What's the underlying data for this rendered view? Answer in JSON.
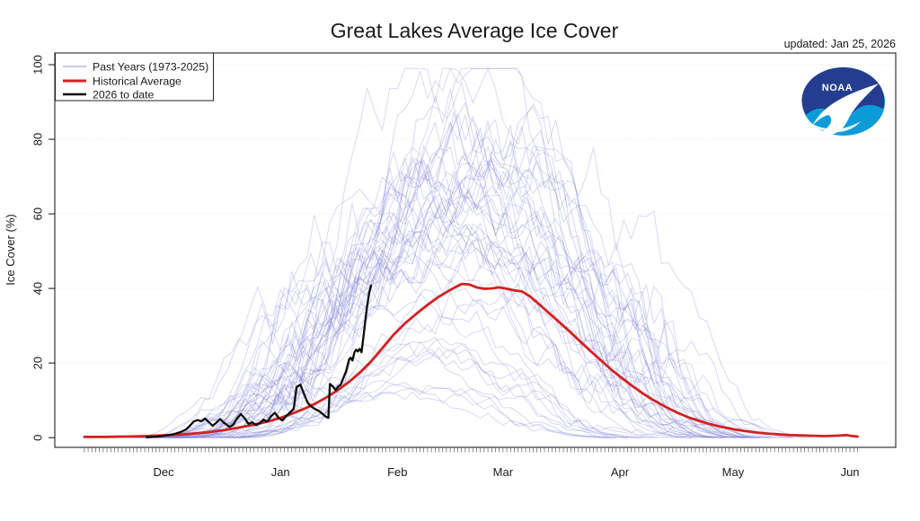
{
  "title": "Great Lakes Average Ice Cover",
  "updated": "updated: Jan 25, 2026",
  "logo": {
    "text": "NOAA"
  },
  "colors": {
    "past": "#7d82d8",
    "past_opacity": 0.3,
    "past_swatch": "#c6c9ea",
    "average": "#d42020",
    "current": "#0a0a0a",
    "grid": "#ececec",
    "axis": "#222222",
    "noaa_navy": "#243d8f",
    "noaa_cyan": "#0b9cd8"
  },
  "legend": {
    "items": [
      {
        "label": "Past Years (1973-2025)",
        "color": "#c6c9ea",
        "width": 2
      },
      {
        "label": "Historical Average",
        "color": "#d42020",
        "width": 3
      },
      {
        "label": "2026 to date",
        "color": "#0a0a0a",
        "width": 2.5
      }
    ]
  },
  "axes": {
    "y_label": "Ice Cover (%)",
    "y_ticks": [
      0,
      20,
      40,
      60,
      80,
      100
    ],
    "months": [
      [
        "Dec",
        30
      ],
      [
        "Jan",
        61
      ],
      [
        "Feb",
        92
      ],
      [
        "Mar",
        120
      ],
      [
        "Apr",
        151
      ],
      [
        "May",
        181
      ],
      [
        "Jun",
        212
      ]
    ],
    "minor_tick_unit": "daily"
  },
  "chart_data": {
    "type": "line",
    "title": "Great Lakes Average Ice Cover",
    "xlabel": "",
    "ylabel": "Ice Cover (%)",
    "ylim": [
      0,
      100
    ],
    "x_unit": "days since Nov 1 (season Nov - mid Jun), month labels at month start",
    "grid": "faint dotted horizontal lines at 20,40,60,80,100",
    "legend_position": "top-left inside plot box",
    "average": {
      "name": "Historical Average",
      "color": "#d42020",
      "points": [
        [
          9,
          0.2
        ],
        [
          14,
          0.2
        ],
        [
          20,
          0.3
        ],
        [
          25,
          0.4
        ],
        [
          30,
          0.6
        ],
        [
          34,
          0.8
        ],
        [
          38,
          1.1
        ],
        [
          42,
          1.5
        ],
        [
          46,
          2
        ],
        [
          50,
          2.7
        ],
        [
          54,
          3.5
        ],
        [
          58,
          4.4
        ],
        [
          61,
          5.3
        ],
        [
          64,
          6.4
        ],
        [
          67,
          7.6
        ],
        [
          70,
          9
        ],
        [
          73,
          10.7
        ],
        [
          76,
          12.6
        ],
        [
          79,
          14.8
        ],
        [
          82,
          17.4
        ],
        [
          85,
          20.4
        ],
        [
          88,
          24
        ],
        [
          91,
          27.6
        ],
        [
          94,
          30.6
        ],
        [
          97,
          33.2
        ],
        [
          100,
          35.6
        ],
        [
          103,
          37.8
        ],
        [
          106,
          39.6
        ],
        [
          109,
          41.2
        ],
        [
          111,
          41.1
        ],
        [
          113,
          40.3
        ],
        [
          115,
          39.9
        ],
        [
          117,
          40
        ],
        [
          119,
          40.3
        ],
        [
          121,
          39.9
        ],
        [
          123,
          39.5
        ],
        [
          125,
          39.2
        ],
        [
          127,
          38
        ],
        [
          129,
          36.3
        ],
        [
          131,
          34.5
        ],
        [
          133,
          32.7
        ],
        [
          135,
          30.9
        ],
        [
          137,
          29.1
        ],
        [
          139,
          27.2
        ],
        [
          141,
          25.3
        ],
        [
          143,
          23.4
        ],
        [
          145,
          21.6
        ],
        [
          147,
          19.8
        ],
        [
          149,
          18
        ],
        [
          151,
          16.4
        ],
        [
          154,
          14.1
        ],
        [
          157,
          11.9
        ],
        [
          160,
          10
        ],
        [
          163,
          8.3
        ],
        [
          166,
          6.8
        ],
        [
          169,
          5.5
        ],
        [
          172,
          4.5
        ],
        [
          175,
          3.6
        ],
        [
          178,
          2.9
        ],
        [
          181,
          2.3
        ],
        [
          184,
          1.8
        ],
        [
          187,
          1.4
        ],
        [
          190,
          1.1
        ],
        [
          193,
          0.9
        ],
        [
          196,
          0.7
        ],
        [
          199,
          0.6
        ],
        [
          202,
          0.5
        ],
        [
          205,
          0.4
        ],
        [
          208,
          0.5
        ],
        [
          210,
          0.6
        ],
        [
          211,
          0.7
        ],
        [
          212,
          0.5
        ],
        [
          214,
          0.3
        ]
      ]
    },
    "current": {
      "name": "2026 to date",
      "color": "#0a0a0a",
      "end_label": "ends Jan 25 at ~41%",
      "points": [
        [
          25.5,
          0.1
        ],
        [
          27,
          0.2
        ],
        [
          28.5,
          0.3
        ],
        [
          30,
          0.5
        ],
        [
          31.5,
          0.7
        ],
        [
          33,
          1
        ],
        [
          34.5,
          1.5
        ],
        [
          36,
          2.2
        ],
        [
          37,
          3.2
        ],
        [
          38,
          4.3
        ],
        [
          39,
          4.7
        ],
        [
          40,
          4.4
        ],
        [
          41,
          5.1
        ],
        [
          42,
          4.2
        ],
        [
          43,
          3.2
        ],
        [
          44,
          4
        ],
        [
          45,
          5
        ],
        [
          46,
          4
        ],
        [
          47.5,
          2.9
        ],
        [
          48.5,
          3.5
        ],
        [
          49.5,
          5.2
        ],
        [
          50.5,
          6.3
        ],
        [
          51.5,
          5.2
        ],
        [
          52.5,
          3.7
        ],
        [
          53.5,
          4.1
        ],
        [
          54.5,
          3.4
        ],
        [
          55.5,
          3.9
        ],
        [
          56.5,
          4.8
        ],
        [
          57.5,
          4.3
        ],
        [
          58.5,
          5.7
        ],
        [
          59.5,
          6.7
        ],
        [
          60.5,
          5.3
        ],
        [
          61.5,
          4.6
        ],
        [
          62.5,
          5.8
        ],
        [
          63.5,
          6.7
        ],
        [
          64.5,
          7.7
        ],
        [
          65.3,
          13.6
        ],
        [
          66.3,
          14.2
        ],
        [
          67.2,
          11.8
        ],
        [
          68.2,
          9.4
        ],
        [
          69.1,
          8.4
        ],
        [
          70.1,
          7.7
        ],
        [
          71.1,
          7.2
        ],
        [
          72,
          6.5
        ],
        [
          73,
          5.6
        ],
        [
          73.7,
          5.3
        ],
        [
          74.1,
          14.4
        ],
        [
          74.9,
          13.7
        ],
        [
          75.6,
          12.8
        ],
        [
          76.3,
          13.7
        ],
        [
          77,
          14.2
        ],
        [
          77.7,
          16.1
        ],
        [
          78.4,
          17.8
        ],
        [
          79.2,
          21
        ],
        [
          79.6,
          21.4
        ],
        [
          80.1,
          20.7
        ],
        [
          80.6,
          22.9
        ],
        [
          81.1,
          23.6
        ],
        [
          81.5,
          23.1
        ],
        [
          82,
          23.8
        ],
        [
          82.5,
          22.9
        ],
        [
          83,
          27
        ],
        [
          83.5,
          31.3
        ],
        [
          84,
          35.4
        ],
        [
          84.5,
          38.6
        ],
        [
          85,
          40.8
        ]
      ]
    },
    "past_years": {
      "name": "Past Years (1973-2025)",
      "color": "#7d82d8",
      "note": "53 faint overlapping seasonal curves; individual values not readable, approximated by [year, peak_pct, peak_day, start_day, end_day, seed]",
      "years": [
        [
          1973,
          64,
          108,
          30,
          185,
          1
        ],
        [
          1974,
          66,
          112,
          28,
          188,
          2
        ],
        [
          1975,
          35,
          105,
          40,
          170,
          3
        ],
        [
          1976,
          75,
          110,
          25,
          192,
          4
        ],
        [
          1977,
          87,
          104,
          20,
          196,
          5
        ],
        [
          1978,
          82,
          115,
          24,
          194,
          6
        ],
        [
          1979,
          94,
          109,
          22,
          200,
          7
        ],
        [
          1980,
          62,
          114,
          32,
          184,
          8
        ],
        [
          1981,
          72,
          102,
          26,
          188,
          9
        ],
        [
          1982,
          78,
          113,
          23,
          192,
          10
        ],
        [
          1983,
          23,
          100,
          45,
          158,
          11
        ],
        [
          1984,
          70,
          116,
          27,
          190,
          12
        ],
        [
          1985,
          68,
          106,
          29,
          186,
          13
        ],
        [
          1986,
          66,
          111,
          30,
          187,
          14
        ],
        [
          1987,
          32,
          98,
          42,
          164,
          15
        ],
        [
          1988,
          65,
          107,
          31,
          185,
          16
        ],
        [
          1989,
          70,
          112,
          28,
          189,
          17
        ],
        [
          1990,
          58,
          103,
          33,
          180,
          18
        ],
        [
          1991,
          48,
          108,
          36,
          175,
          19
        ],
        [
          1992,
          60,
          110,
          32,
          182,
          20
        ],
        [
          1993,
          62,
          105,
          30,
          183,
          21
        ],
        [
          1994,
          91,
          111,
          21,
          198,
          22
        ],
        [
          1995,
          52,
          101,
          35,
          176,
          23
        ],
        [
          1996,
          79,
          114,
          24,
          193,
          24
        ],
        [
          1997,
          65,
          108,
          29,
          185,
          25
        ],
        [
          1998,
          15,
          95,
          48,
          150,
          26
        ],
        [
          1999,
          30,
          99,
          43,
          162,
          27
        ],
        [
          2000,
          46,
          104,
          37,
          172,
          28
        ],
        [
          2001,
          55,
          109,
          34,
          178,
          29
        ],
        [
          2002,
          12,
          92,
          50,
          148,
          30
        ],
        [
          2003,
          72,
          115,
          26,
          190,
          31
        ],
        [
          2004,
          60,
          107,
          31,
          181,
          32
        ],
        [
          2005,
          65,
          110,
          30,
          184,
          33
        ],
        [
          2006,
          22,
          97,
          46,
          156,
          34
        ],
        [
          2007,
          58,
          105,
          33,
          179,
          35
        ],
        [
          2008,
          54,
          108,
          34,
          177,
          36
        ],
        [
          2009,
          68,
          112,
          28,
          187,
          37
        ],
        [
          2010,
          42,
          103,
          38,
          170,
          38
        ],
        [
          2011,
          55,
          109,
          33,
          178,
          39
        ],
        [
          2012,
          13,
          93,
          49,
          149,
          40
        ],
        [
          2013,
          38,
          106,
          40,
          168,
          41
        ],
        [
          2014,
          92,
          118,
          22,
          202,
          42
        ],
        [
          2015,
          88,
          116,
          23,
          198,
          43
        ],
        [
          2016,
          25,
          98,
          44,
          160,
          44
        ],
        [
          2017,
          20,
          96,
          47,
          154,
          45
        ],
        [
          2018,
          69,
          111,
          27,
          188,
          46
        ],
        [
          2019,
          56,
          107,
          32,
          179,
          47
        ],
        [
          2020,
          19,
          95,
          47,
          153,
          48
        ],
        [
          2021,
          45,
          104,
          37,
          172,
          49
        ],
        [
          2022,
          56,
          110,
          33,
          180,
          50
        ],
        [
          2023,
          22,
          97,
          45,
          157,
          51
        ],
        [
          2024,
          16,
          94,
          48,
          151,
          52
        ],
        [
          2025,
          53,
          106,
          34,
          177,
          53
        ]
      ]
    }
  }
}
